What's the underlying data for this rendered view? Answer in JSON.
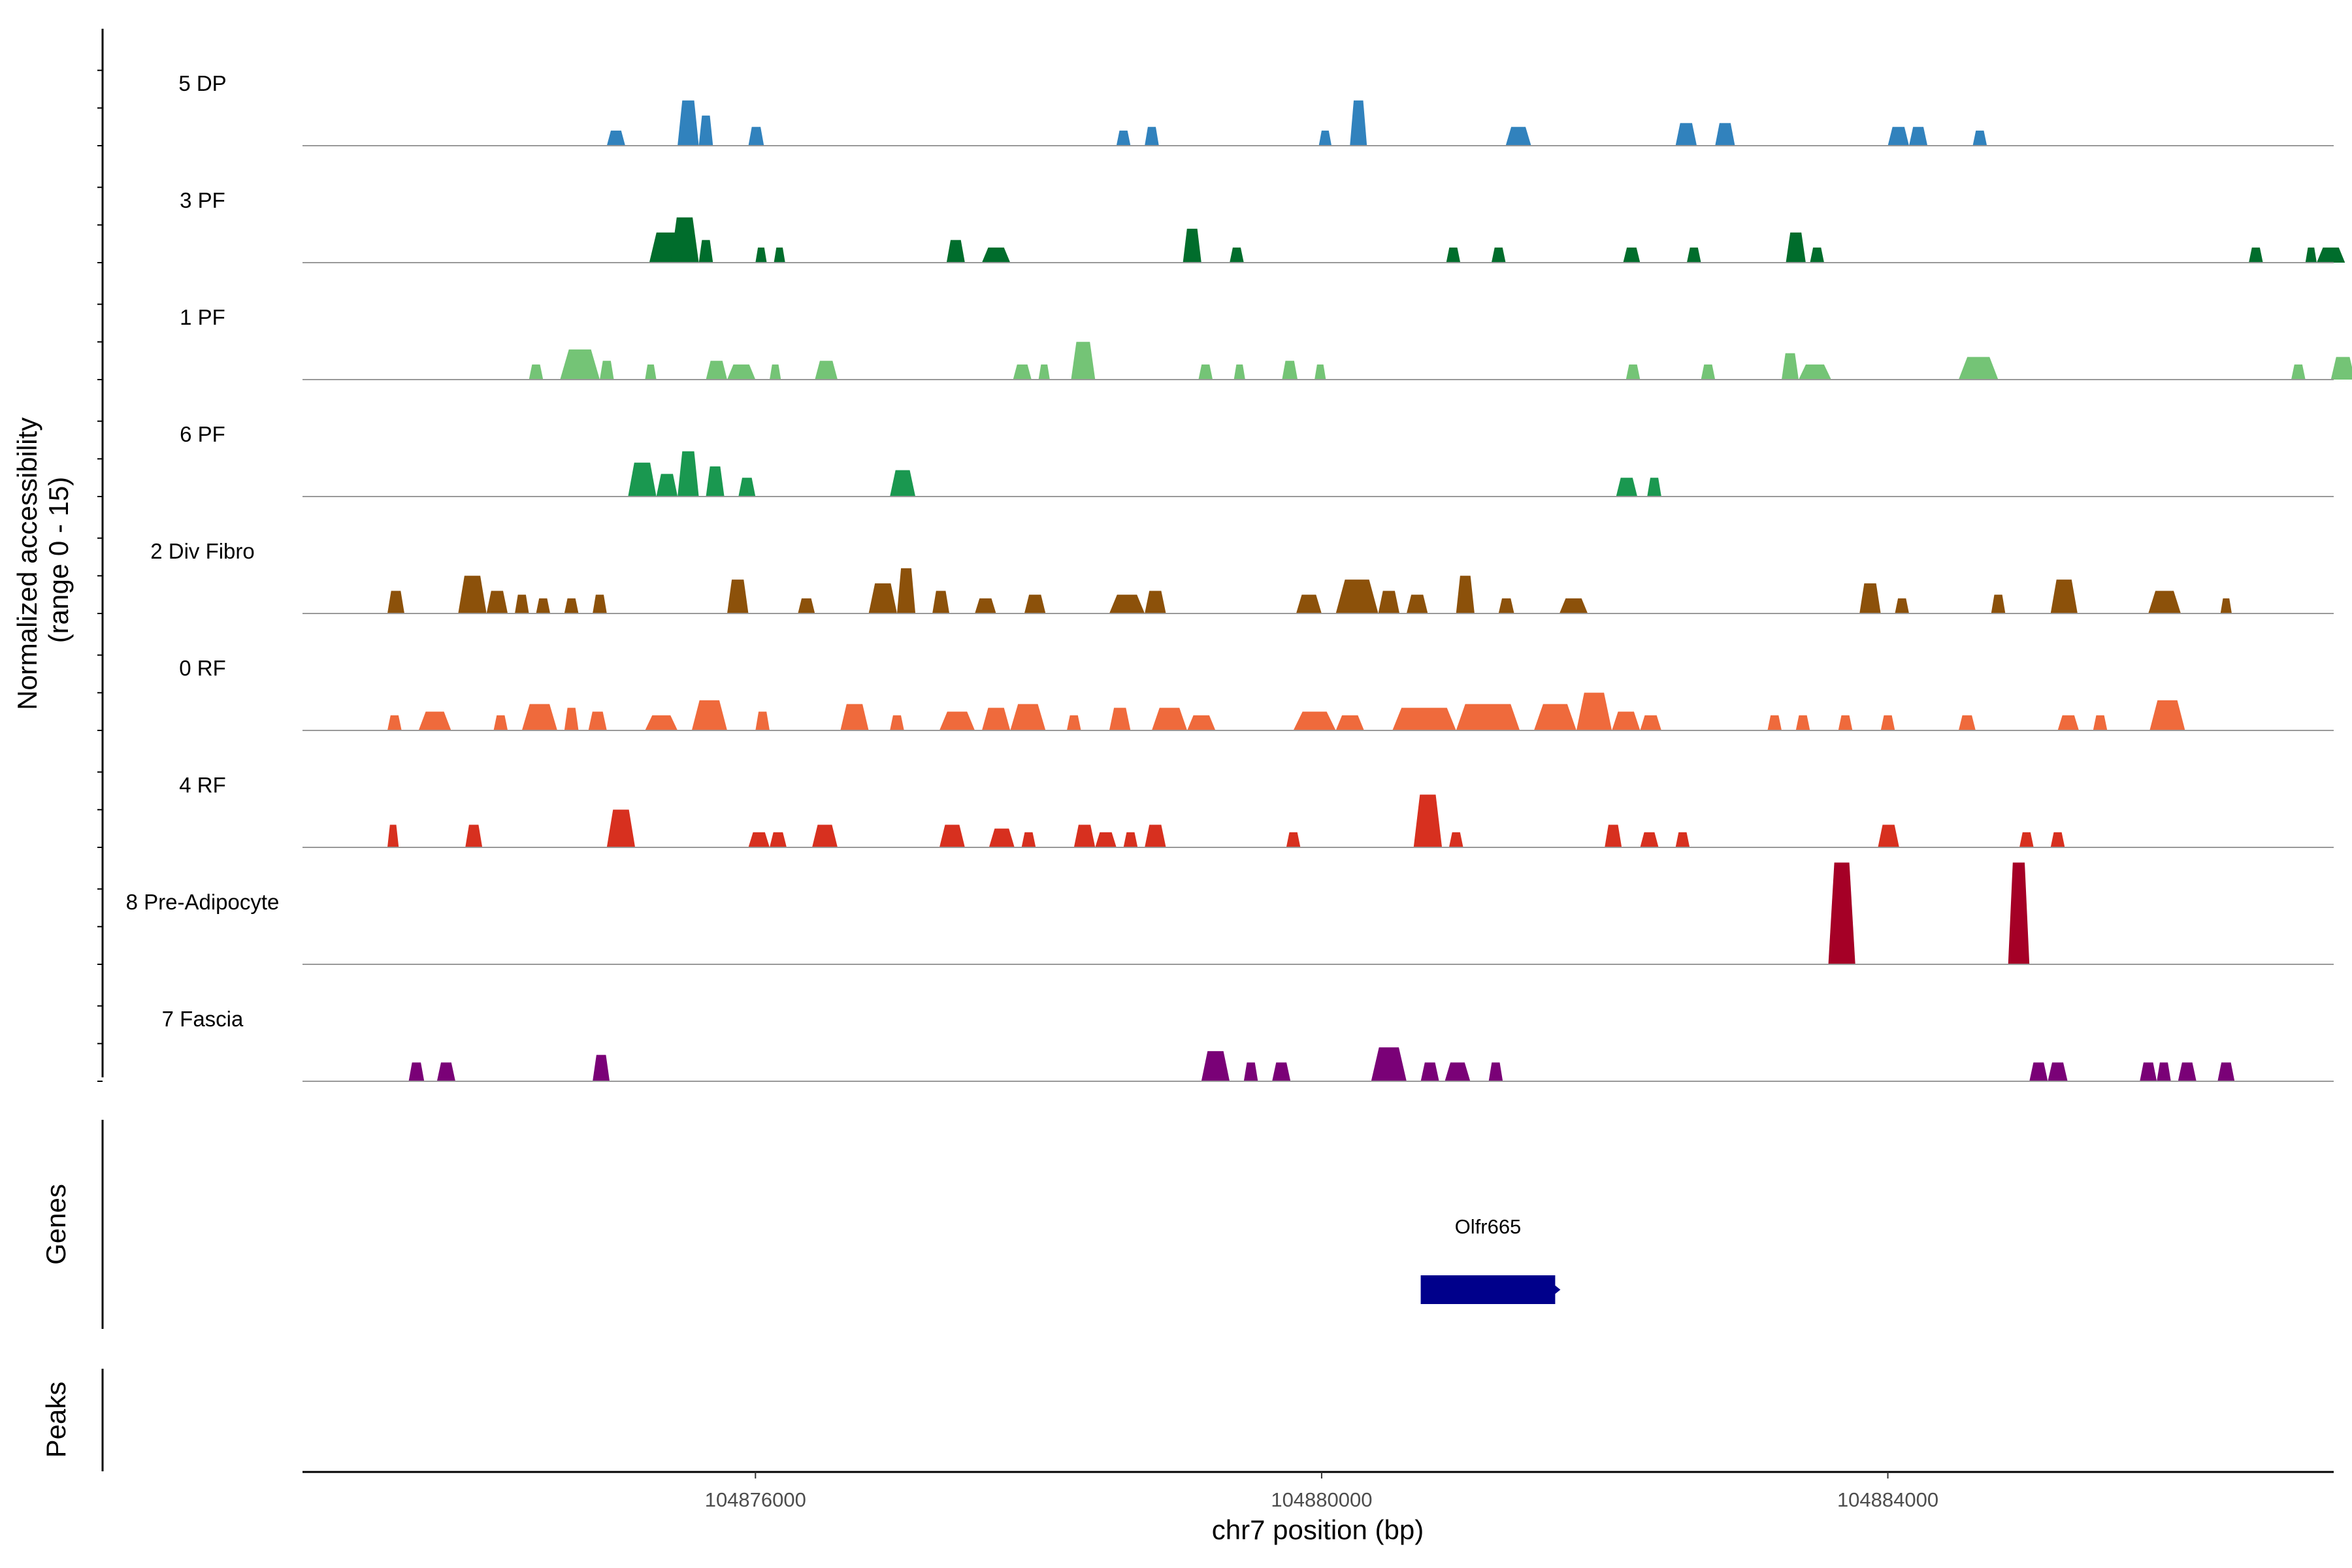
{
  "chart_data": {
    "type": "area",
    "subtype": "genome-coverage-tracks",
    "xlabel": "chr7 position (bp)",
    "ylabel_line1": "Normalized accessibility",
    "ylabel_line2": "(range 0 - 15)",
    "xlim": [
      104872800,
      104887150
    ],
    "ylim": [
      0,
      15
    ],
    "x_ticks": [
      {
        "value": 104876000,
        "label": "104876000"
      },
      {
        "value": 104880000,
        "label": "104880000"
      },
      {
        "value": 104884000,
        "label": "104884000"
      }
    ],
    "series": [
      {
        "name": "5 DP",
        "color": "#3182bd",
        "peaks": [
          [
            104874950,
            104875080,
            2
          ],
          [
            104875450,
            104875600,
            6
          ],
          [
            104875600,
            104875700,
            4
          ],
          [
            104875950,
            104876060,
            2.5
          ],
          [
            104878550,
            104878650,
            2
          ],
          [
            104878750,
            104878850,
            2.5
          ],
          [
            104879980,
            104880070,
            2
          ],
          [
            104880200,
            104880320,
            6
          ],
          [
            104881300,
            104881480,
            2.5
          ],
          [
            104882500,
            104882650,
            3
          ],
          [
            104882780,
            104882920,
            3
          ],
          [
            104884000,
            104884150,
            2.5
          ],
          [
            104884150,
            104884280,
            2.5
          ],
          [
            104884600,
            104884700,
            2
          ]
        ]
      },
      {
        "name": "3 PF",
        "color": "#006d2c",
        "peaks": [
          [
            104875250,
            104875480,
            4
          ],
          [
            104875400,
            104875600,
            6
          ],
          [
            104875600,
            104875700,
            3
          ],
          [
            104876000,
            104876080,
            2
          ],
          [
            104876130,
            104876210,
            2
          ],
          [
            104877350,
            104877480,
            3
          ],
          [
            104877600,
            104877800,
            2
          ],
          [
            104879020,
            104879150,
            4.5
          ],
          [
            104879350,
            104879450,
            2
          ],
          [
            104880880,
            104880980,
            2
          ],
          [
            104881200,
            104881300,
            2
          ],
          [
            104882130,
            104882250,
            2
          ],
          [
            104882580,
            104882680,
            2
          ],
          [
            104883280,
            104883420,
            4
          ],
          [
            104883450,
            104883550,
            2
          ],
          [
            104886550,
            104886650,
            2
          ],
          [
            104886950,
            104887030,
            2
          ],
          [
            104887030,
            104887230,
            2
          ]
        ]
      },
      {
        "name": "1 PF",
        "color": "#74c476",
        "peaks": [
          [
            104874400,
            104874500,
            2
          ],
          [
            104874620,
            104874900,
            4
          ],
          [
            104874900,
            104875000,
            2.5
          ],
          [
            104875220,
            104875300,
            2
          ],
          [
            104875650,
            104875800,
            2.5
          ],
          [
            104875800,
            104876000,
            2
          ],
          [
            104876100,
            104876180,
            2
          ],
          [
            104876420,
            104876580,
            2.5
          ],
          [
            104877820,
            104877950,
            2
          ],
          [
            104878000,
            104878080,
            2
          ],
          [
            104878230,
            104878400,
            5
          ],
          [
            104879130,
            104879230,
            2
          ],
          [
            104879380,
            104879460,
            2
          ],
          [
            104879720,
            104879830,
            2.5
          ],
          [
            104879950,
            104880030,
            2
          ],
          [
            104882150,
            104882250,
            2
          ],
          [
            104882680,
            104882780,
            2
          ],
          [
            104883250,
            104883370,
            3.5
          ],
          [
            104883370,
            104883600,
            2
          ],
          [
            104884500,
            104884780,
            3
          ],
          [
            104886850,
            104886950,
            2
          ],
          [
            104887130,
            104887300,
            3
          ]
        ]
      },
      {
        "name": "6 PF",
        "color": "#1a9850",
        "peaks": [
          [
            104875100,
            104875300,
            4.5
          ],
          [
            104875300,
            104875450,
            3
          ],
          [
            104875450,
            104875600,
            6
          ],
          [
            104875650,
            104875780,
            4
          ],
          [
            104875880,
            104876000,
            2.5
          ],
          [
            104876950,
            104877130,
            3.5
          ],
          [
            104882080,
            104882230,
            2.5
          ],
          [
            104882300,
            104882400,
            2.5
          ]
        ]
      },
      {
        "name": "2 Div Fibro",
        "color": "#8c510a",
        "peaks": [
          [
            104873400,
            104873520,
            3
          ],
          [
            104873900,
            104874100,
            5
          ],
          [
            104874100,
            104874250,
            3
          ],
          [
            104874300,
            104874400,
            2.5
          ],
          [
            104874450,
            104874550,
            2
          ],
          [
            104874650,
            104874750,
            2
          ],
          [
            104874850,
            104874950,
            2.5
          ],
          [
            104875800,
            104875950,
            4.5
          ],
          [
            104876300,
            104876420,
            2
          ],
          [
            104876800,
            104877000,
            4
          ],
          [
            104877000,
            104877130,
            6
          ],
          [
            104877250,
            104877370,
            3
          ],
          [
            104877550,
            104877700,
            2
          ],
          [
            104877900,
            104878050,
            2.5
          ],
          [
            104878500,
            104878750,
            2.5
          ],
          [
            104878750,
            104878900,
            3
          ],
          [
            104879820,
            104880000,
            2.5
          ],
          [
            104880100,
            104880400,
            4.5
          ],
          [
            104880400,
            104880550,
            3
          ],
          [
            104880600,
            104880750,
            2.5
          ],
          [
            104880950,
            104881080,
            5
          ],
          [
            104881250,
            104881360,
            2
          ],
          [
            104881680,
            104881880,
            2
          ],
          [
            104883800,
            104883950,
            4
          ],
          [
            104884050,
            104884150,
            2
          ],
          [
            104884730,
            104884830,
            2.5
          ],
          [
            104885150,
            104885340,
            4.5
          ],
          [
            104885840,
            104886070,
            3
          ],
          [
            104886350,
            104886430,
            2
          ]
        ]
      },
      {
        "name": "0 RF",
        "color": "#ef6a3c",
        "peaks": [
          [
            104873400,
            104873500,
            2
          ],
          [
            104873620,
            104873850,
            2.5
          ],
          [
            104874150,
            104874250,
            2
          ],
          [
            104874350,
            104874600,
            3.5
          ],
          [
            104874650,
            104874750,
            3
          ],
          [
            104874820,
            104874950,
            2.5
          ],
          [
            104875220,
            104875450,
            2
          ],
          [
            104875550,
            104875800,
            4
          ],
          [
            104876000,
            104876100,
            2.5
          ],
          [
            104876600,
            104876800,
            3.5
          ],
          [
            104876950,
            104877050,
            2
          ],
          [
            104877300,
            104877550,
            2.5
          ],
          [
            104877600,
            104877800,
            3
          ],
          [
            104877800,
            104878050,
            3.5
          ],
          [
            104878200,
            104878300,
            2
          ],
          [
            104878500,
            104878650,
            3
          ],
          [
            104878800,
            104879050,
            3
          ],
          [
            104879050,
            104879250,
            2
          ],
          [
            104879800,
            104880100,
            2.5
          ],
          [
            104880100,
            104880300,
            2
          ],
          [
            104880500,
            104880950,
            3
          ],
          [
            104880950,
            104881400,
            3.5
          ],
          [
            104881500,
            104881800,
            3.5
          ],
          [
            104881800,
            104882050,
            5
          ],
          [
            104882050,
            104882250,
            2.5
          ],
          [
            104882250,
            104882400,
            2
          ],
          [
            104883150,
            104883250,
            2
          ],
          [
            104883350,
            104883450,
            2
          ],
          [
            104883650,
            104883750,
            2
          ],
          [
            104883950,
            104884050,
            2
          ],
          [
            104884500,
            104884620,
            2
          ],
          [
            104885200,
            104885350,
            2
          ],
          [
            104885450,
            104885550,
            2
          ],
          [
            104885850,
            104886100,
            4
          ]
        ]
      },
      {
        "name": "4 RF",
        "color": "#d7301f",
        "peaks": [
          [
            104873400,
            104873480,
            3
          ],
          [
            104873950,
            104874070,
            3
          ],
          [
            104874950,
            104875150,
            5
          ],
          [
            104875950,
            104876100,
            2
          ],
          [
            104876100,
            104876220,
            2
          ],
          [
            104876400,
            104876580,
            3
          ],
          [
            104877300,
            104877480,
            3
          ],
          [
            104877650,
            104877830,
            2.5
          ],
          [
            104877880,
            104877980,
            2
          ],
          [
            104878250,
            104878400,
            3
          ],
          [
            104878400,
            104878550,
            2
          ],
          [
            104878600,
            104878700,
            2
          ],
          [
            104878750,
            104878900,
            3
          ],
          [
            104879750,
            104879850,
            2
          ],
          [
            104880650,
            104880850,
            7
          ],
          [
            104880900,
            104881000,
            2
          ],
          [
            104882000,
            104882120,
            3
          ],
          [
            104882250,
            104882380,
            2
          ],
          [
            104882500,
            104882600,
            2
          ],
          [
            104883930,
            104884080,
            3
          ],
          [
            104884930,
            104885030,
            2
          ],
          [
            104885150,
            104885250,
            2
          ]
        ]
      },
      {
        "name": "8 Pre-Adipocyte",
        "color": "#a50026",
        "peaks": [
          [
            104883580,
            104883770,
            13.5
          ],
          [
            104884850,
            104885000,
            13.5
          ]
        ]
      },
      {
        "name": "7 Fascia",
        "color": "#7a0177",
        "peaks": [
          [
            104873550,
            104873660,
            2.5
          ],
          [
            104873750,
            104873880,
            2.5
          ],
          [
            104874850,
            104874970,
            3.5
          ],
          [
            104879150,
            104879350,
            4
          ],
          [
            104879450,
            104879550,
            2.5
          ],
          [
            104879650,
            104879780,
            2.5
          ],
          [
            104880350,
            104880600,
            4.5
          ],
          [
            104880700,
            104880830,
            2.5
          ],
          [
            104880870,
            104881050,
            2.5
          ],
          [
            104881180,
            104881280,
            2.5
          ],
          [
            104885000,
            104885130,
            2.5
          ],
          [
            104885130,
            104885270,
            2.5
          ],
          [
            104885780,
            104885900,
            2.5
          ],
          [
            104885900,
            104886000,
            2.5
          ],
          [
            104886050,
            104886180,
            2.5
          ],
          [
            104886330,
            104886450,
            2.5
          ]
        ]
      }
    ],
    "genes_label": "Genes",
    "genes": [
      {
        "name": "Olfr665",
        "start": 104880700,
        "end": 104881650,
        "strand": "+",
        "color": "#00008b"
      }
    ],
    "peaks_label": "Peaks"
  }
}
